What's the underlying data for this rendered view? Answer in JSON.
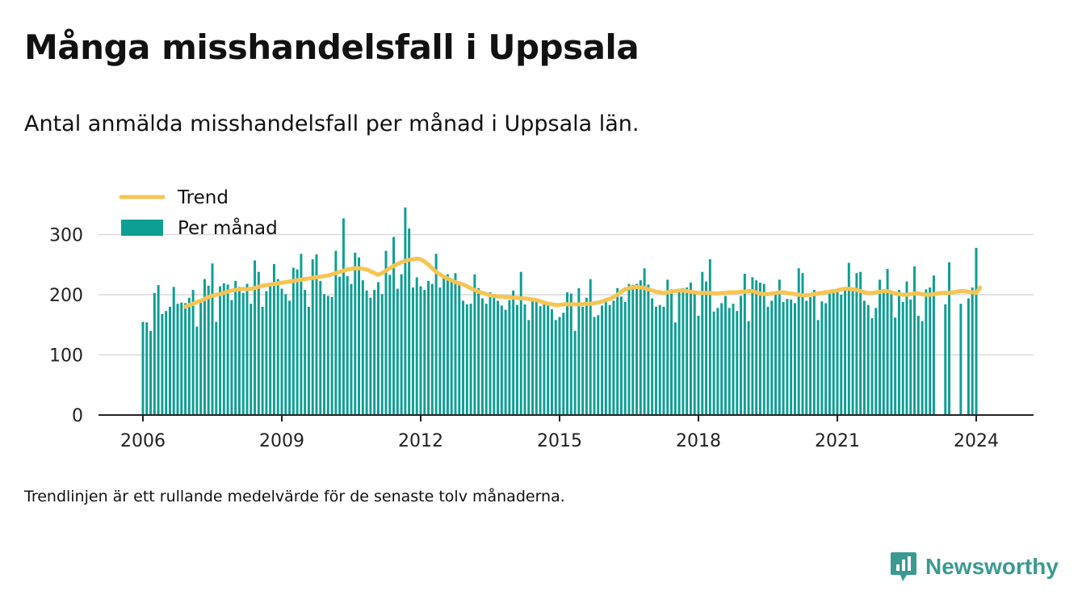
{
  "title": "Många misshandelsfall i Uppsala",
  "subtitle": "Antal anmälda misshandelsfall per månad i Uppsala län.",
  "note": "Trendlinjen är ett rullande medelvärde för de senaste tolv månaderna.",
  "brand": {
    "name": "Newsworthy",
    "icon": "newsworthy-chart-bubble-icon"
  },
  "colors": {
    "bar": "#0d9e94",
    "trend": "#f7c453",
    "axis": "#222222",
    "grid": "#d9d9d9",
    "brand": "#3a9a92"
  },
  "chart_data": {
    "type": "bar",
    "x_start": "2006-01",
    "x_unit": "month",
    "xlabel": "",
    "ylabel": "",
    "ylim": [
      0,
      345
    ],
    "yticks": [
      0,
      100,
      200,
      300
    ],
    "xticks": [
      "2006",
      "2009",
      "2012",
      "2015",
      "2018",
      "2021",
      "2024"
    ],
    "grid": true,
    "legend_position": "top-left",
    "series": [
      {
        "name": "Per månad",
        "type": "bar",
        "values": [
          155,
          154,
          140,
          203,
          216,
          168,
          173,
          180,
          213,
          185,
          187,
          186,
          195,
          208,
          147,
          187,
          226,
          215,
          252,
          155,
          214,
          219,
          217,
          191,
          223,
          213,
          203,
          218,
          185,
          257,
          238,
          180,
          206,
          217,
          251,
          226,
          210,
          201,
          190,
          245,
          242,
          268,
          208,
          180,
          259,
          267,
          223,
          201,
          198,
          196,
          273,
          230,
          327,
          231,
          218,
          270,
          262,
          224,
          207,
          195,
          208,
          221,
          201,
          273,
          233,
          296,
          210,
          234,
          345,
          310,
          212,
          229,
          214,
          208,
          223,
          218,
          268,
          212,
          229,
          234,
          224,
          236,
          218,
          190,
          184,
          185,
          234,
          211,
          194,
          185,
          204,
          200,
          190,
          182,
          175,
          191,
          207,
          183,
          238,
          184,
          158,
          191,
          190,
          181,
          188,
          188,
          176,
          158,
          163,
          170,
          204,
          202,
          140,
          211,
          180,
          195,
          226,
          163,
          166,
          182,
          189,
          183,
          190,
          211,
          197,
          188,
          218,
          216,
          218,
          224,
          244,
          217,
          194,
          180,
          183,
          180,
          225,
          209,
          154,
          208,
          211,
          212,
          220,
          206,
          165,
          238,
          222,
          259,
          172,
          178,
          186,
          198,
          178,
          185,
          173,
          198,
          235,
          156,
          229,
          224,
          220,
          218,
          180,
          190,
          200,
          225,
          188,
          193,
          192,
          186,
          244,
          236,
          190,
          196,
          208,
          158,
          189,
          186,
          205,
          207,
          209,
          200,
          207,
          253,
          208,
          236,
          238,
          190,
          183,
          161,
          178,
          225,
          204,
          243,
          203,
          162,
          208,
          188,
          222,
          192,
          247,
          165,
          156,
          209,
          212,
          232,
          0,
          0,
          184,
          254,
          0,
          0,
          185,
          0,
          194,
          212,
          278
        ]
      },
      {
        "name": "Trend",
        "type": "line",
        "start_index": 11,
        "values": [
          180,
          183,
          185,
          188,
          190,
          193,
          196,
          198,
          200,
          201,
          203,
          205,
          207,
          208,
          209,
          210,
          209,
          210,
          211,
          213,
          215,
          216,
          217,
          218,
          219,
          220,
          221,
          222,
          223,
          224,
          225,
          226,
          227,
          228,
          229,
          230,
          231,
          232,
          234,
          236,
          238,
          240,
          242,
          243,
          244,
          244,
          243,
          242,
          239,
          236,
          233,
          236,
          240,
          244,
          248,
          251,
          254,
          256,
          258,
          259,
          260,
          259,
          255,
          250,
          244,
          238,
          234,
          230,
          227,
          224,
          221,
          219,
          217,
          214,
          211,
          208,
          205,
          203,
          201,
          199,
          198,
          197,
          197,
          196,
          196,
          195,
          195,
          194,
          194,
          193,
          192,
          191,
          189,
          187,
          185,
          184,
          183,
          183,
          184,
          184,
          184,
          184,
          184,
          184,
          185,
          185,
          186,
          187,
          189,
          191,
          193,
          196,
          200,
          205,
          209,
          211,
          212,
          213,
          212,
          211,
          209,
          207,
          205,
          204,
          203,
          204,
          205,
          206,
          207,
          207,
          206,
          205,
          204,
          203,
          203,
          203,
          203,
          202,
          202,
          203,
          203,
          204,
          204,
          204,
          205,
          205,
          206,
          206,
          204,
          202,
          201,
          201,
          202,
          203,
          204,
          204,
          203,
          202,
          201,
          200,
          199,
          199,
          200,
          201,
          202,
          203,
          204,
          205,
          206,
          207,
          209,
          210,
          210,
          209,
          208,
          206,
          204,
          203,
          203,
          204,
          205,
          206,
          206,
          204,
          202,
          201,
          200,
          200,
          201,
          202,
          202,
          201,
          200,
          200,
          201,
          202,
          203,
          203,
          203,
          204,
          205,
          206,
          206,
          205,
          204,
          203,
          212
        ]
      }
    ]
  }
}
